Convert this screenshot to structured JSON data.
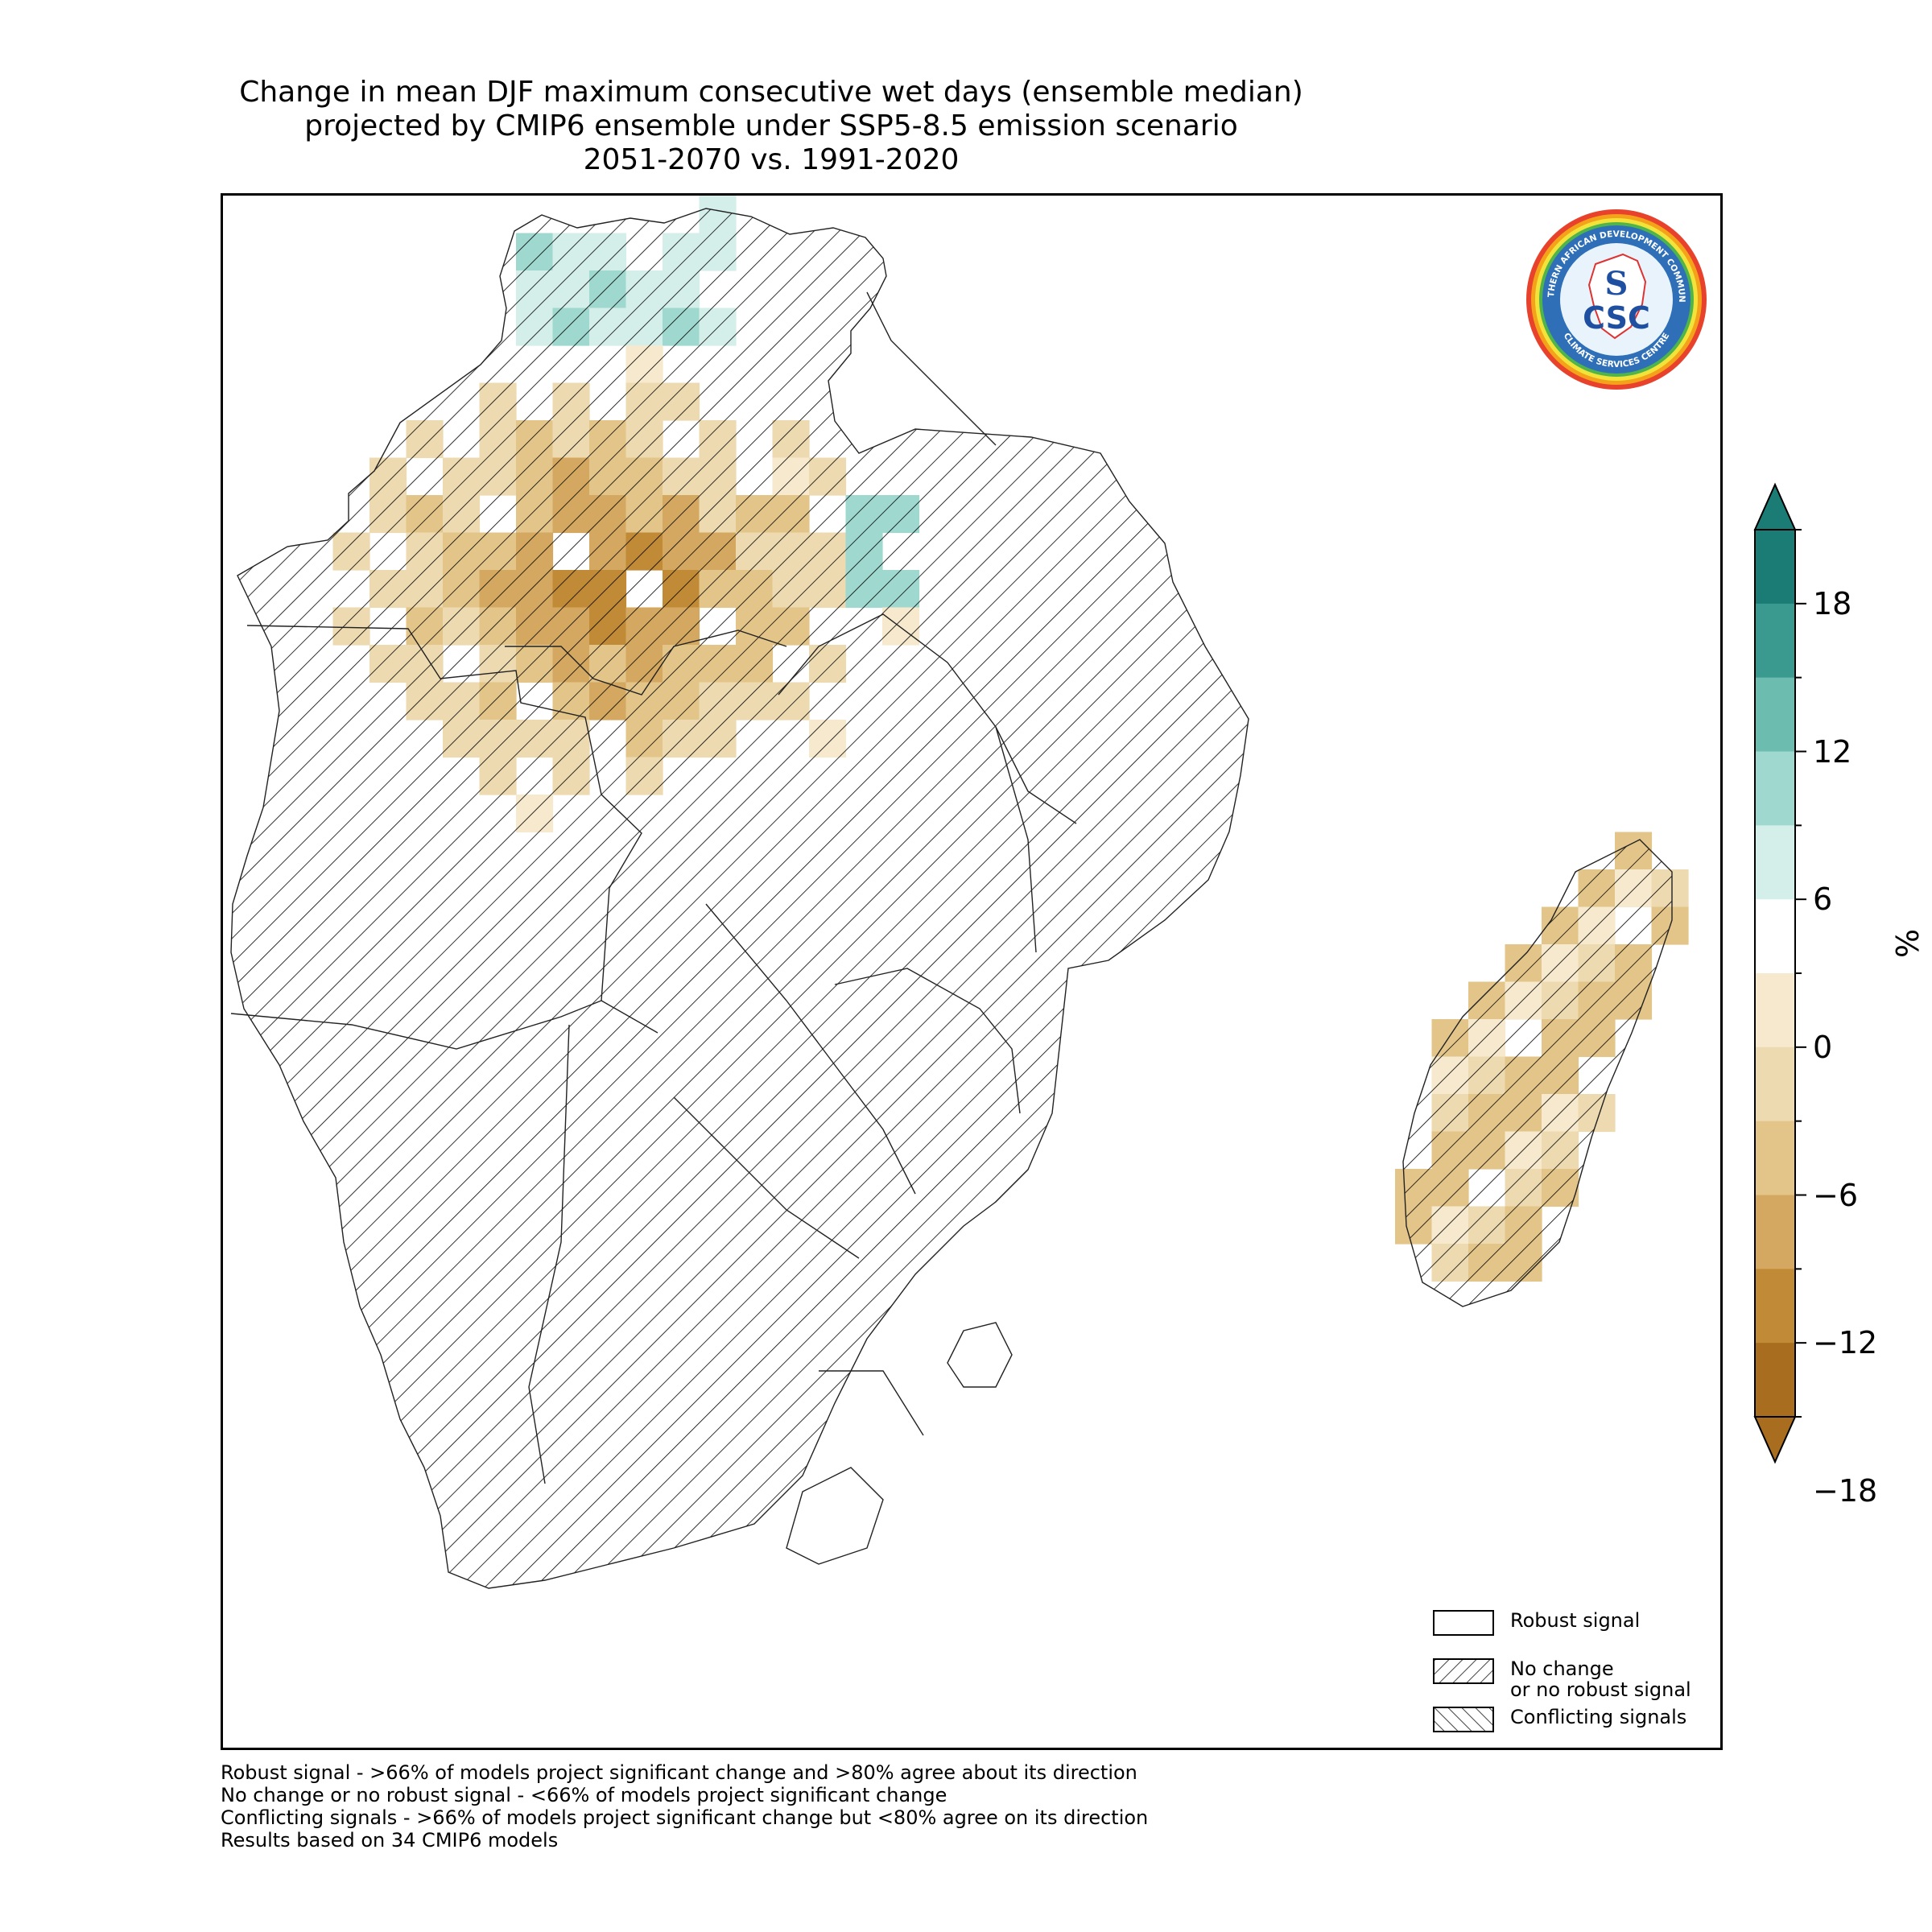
{
  "title": {
    "line1": "Change in mean DJF maximum consecutive wet days (ensemble median)",
    "line2": "projected by CMIP6 ensemble under SSP5-8.5 emission scenario",
    "line3": "2051-2070 vs. 1991-2020"
  },
  "logo": {
    "icon": "sadc-csc-logo",
    "top_text": "SOUTHERN AFRICAN DEVELOPMENT COMMUNITY",
    "bottom_text": "CLIMATE SERVICES CENTRE",
    "mark_text": "CSC"
  },
  "colorbar": {
    "unit": "%",
    "tick_labels": [
      "18",
      "12",
      "6",
      "0",
      "−6",
      "−12",
      "−18"
    ],
    "colors": [
      "#1a7c74",
      "#3b9a90",
      "#6cbcb0",
      "#9fd8cf",
      "#d4eeea",
      "#ffffff",
      "#f6e9cd",
      "#eddab0",
      "#e3c58a",
      "#d4a861",
      "#c18a37",
      "#a86d1e"
    ]
  },
  "legend": {
    "robust": "Robust signal",
    "no_change": "No change\nor no robust signal",
    "conflicting": "Conflicting signals"
  },
  "notes": [
    "Robust signal - >66% of models project significant change and >80% agree about its direction",
    "No change or no robust signal - <66% of models project significant change",
    "Conflicting signals - >66% of models project significant change but <80% agree on its direction",
    "Results based on 34 CMIP6 models"
  ]
}
